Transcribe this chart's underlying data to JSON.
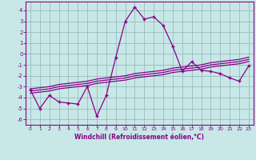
{
  "xlabel": "Windchill (Refroidissement éolien,°C)",
  "ylabel": "",
  "background_color": "#c8e8e8",
  "grid_color": "#99bbbb",
  "line_color": "#880088",
  "x": [
    0,
    1,
    2,
    3,
    4,
    5,
    6,
    7,
    8,
    9,
    10,
    11,
    12,
    13,
    14,
    15,
    16,
    17,
    18,
    19,
    20,
    21,
    22,
    23
  ],
  "y_main": [
    -3.3,
    -5.0,
    -3.8,
    -4.4,
    -4.5,
    -4.6,
    -3.0,
    -5.7,
    -3.8,
    -0.3,
    3.0,
    4.3,
    3.2,
    3.4,
    2.6,
    0.7,
    -1.6,
    -0.7,
    -1.5,
    -1.6,
    -1.8,
    -2.2,
    -2.5,
    -1.1
  ],
  "y_reg1": [
    -3.4,
    -3.3,
    -3.2,
    -3.0,
    -2.9,
    -2.8,
    -2.7,
    -2.5,
    -2.4,
    -2.3,
    -2.2,
    -2.0,
    -1.9,
    -1.8,
    -1.7,
    -1.5,
    -1.4,
    -1.3,
    -1.2,
    -1.0,
    -0.9,
    -0.8,
    -0.7,
    -0.5
  ],
  "y_reg2": [
    -3.6,
    -3.5,
    -3.4,
    -3.2,
    -3.1,
    -3.0,
    -2.9,
    -2.7,
    -2.6,
    -2.5,
    -2.4,
    -2.2,
    -2.1,
    -2.0,
    -1.9,
    -1.7,
    -1.6,
    -1.5,
    -1.4,
    -1.2,
    -1.1,
    -1.0,
    -0.9,
    -0.7
  ],
  "y_reg3": [
    -3.2,
    -3.1,
    -3.0,
    -2.8,
    -2.7,
    -2.6,
    -2.5,
    -2.3,
    -2.2,
    -2.1,
    -2.0,
    -1.8,
    -1.7,
    -1.6,
    -1.5,
    -1.3,
    -1.2,
    -1.1,
    -1.0,
    -0.8,
    -0.7,
    -0.6,
    -0.5,
    -0.3
  ],
  "ylim": [
    -6.5,
    4.8
  ],
  "xlim": [
    -0.5,
    23.5
  ],
  "yticks": [
    -6,
    -5,
    -4,
    -3,
    -2,
    -1,
    0,
    1,
    2,
    3,
    4
  ],
  "xticks": [
    0,
    1,
    2,
    3,
    4,
    5,
    6,
    7,
    8,
    9,
    10,
    11,
    12,
    13,
    14,
    15,
    16,
    17,
    18,
    19,
    20,
    21,
    22,
    23
  ]
}
